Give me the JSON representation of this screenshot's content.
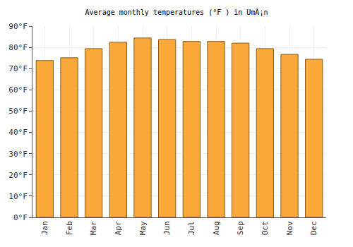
{
  "chart_data": {
    "type": "bar",
    "title": "Average monthly temperatures (°F ) in UmÃ¡n",
    "categories": [
      "Jan",
      "Feb",
      "Mar",
      "Apr",
      "May",
      "Jun",
      "Jul",
      "Aug",
      "Sep",
      "Oct",
      "Nov",
      "Dec"
    ],
    "values": [
      73.8,
      75.1,
      79.4,
      82.4,
      84.4,
      83.7,
      82.8,
      82.8,
      82.0,
      79.4,
      76.7,
      74.4
    ],
    "color": "#fba83a",
    "ylim": [
      0,
      90
    ],
    "yticks": [
      {
        "value": 0,
        "label": "0°F"
      },
      {
        "value": 10,
        "label": "10°F"
      },
      {
        "value": 20,
        "label": "20°F"
      },
      {
        "value": 30,
        "label": "30°F"
      },
      {
        "value": 40,
        "label": "40°F"
      },
      {
        "value": 50,
        "label": "50°F"
      },
      {
        "value": 60,
        "label": "60°F"
      },
      {
        "value": 70,
        "label": "70°F"
      },
      {
        "value": 80,
        "label": "80°F"
      },
      {
        "value": 90,
        "label": "90°F"
      }
    ],
    "grid": true
  }
}
